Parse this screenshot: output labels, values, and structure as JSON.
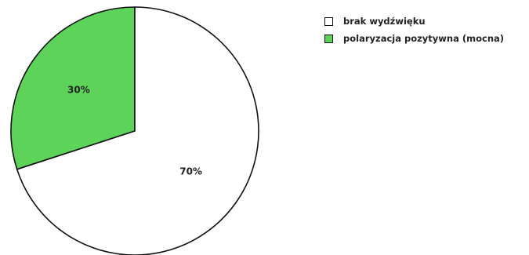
{
  "chart_data": {
    "type": "pie",
    "start": "12 o'clock",
    "direction": "counterclockwise",
    "slices": [
      {
        "label": "polaryzacja pozytywna (mocna)",
        "value": 30,
        "display": "30%",
        "color": "#5dd35a"
      },
      {
        "label": "brak wydźwięku",
        "value": 70,
        "display": "70%",
        "color": "#ffffff"
      }
    ],
    "legend": {
      "position": "top-right",
      "items": [
        {
          "label": "brak wydźwięku",
          "color": "#ffffff"
        },
        {
          "label": "polaryzacja pozytywna (mocna)",
          "color": "#5dd35a"
        }
      ]
    },
    "stroke_color": "#111111"
  }
}
